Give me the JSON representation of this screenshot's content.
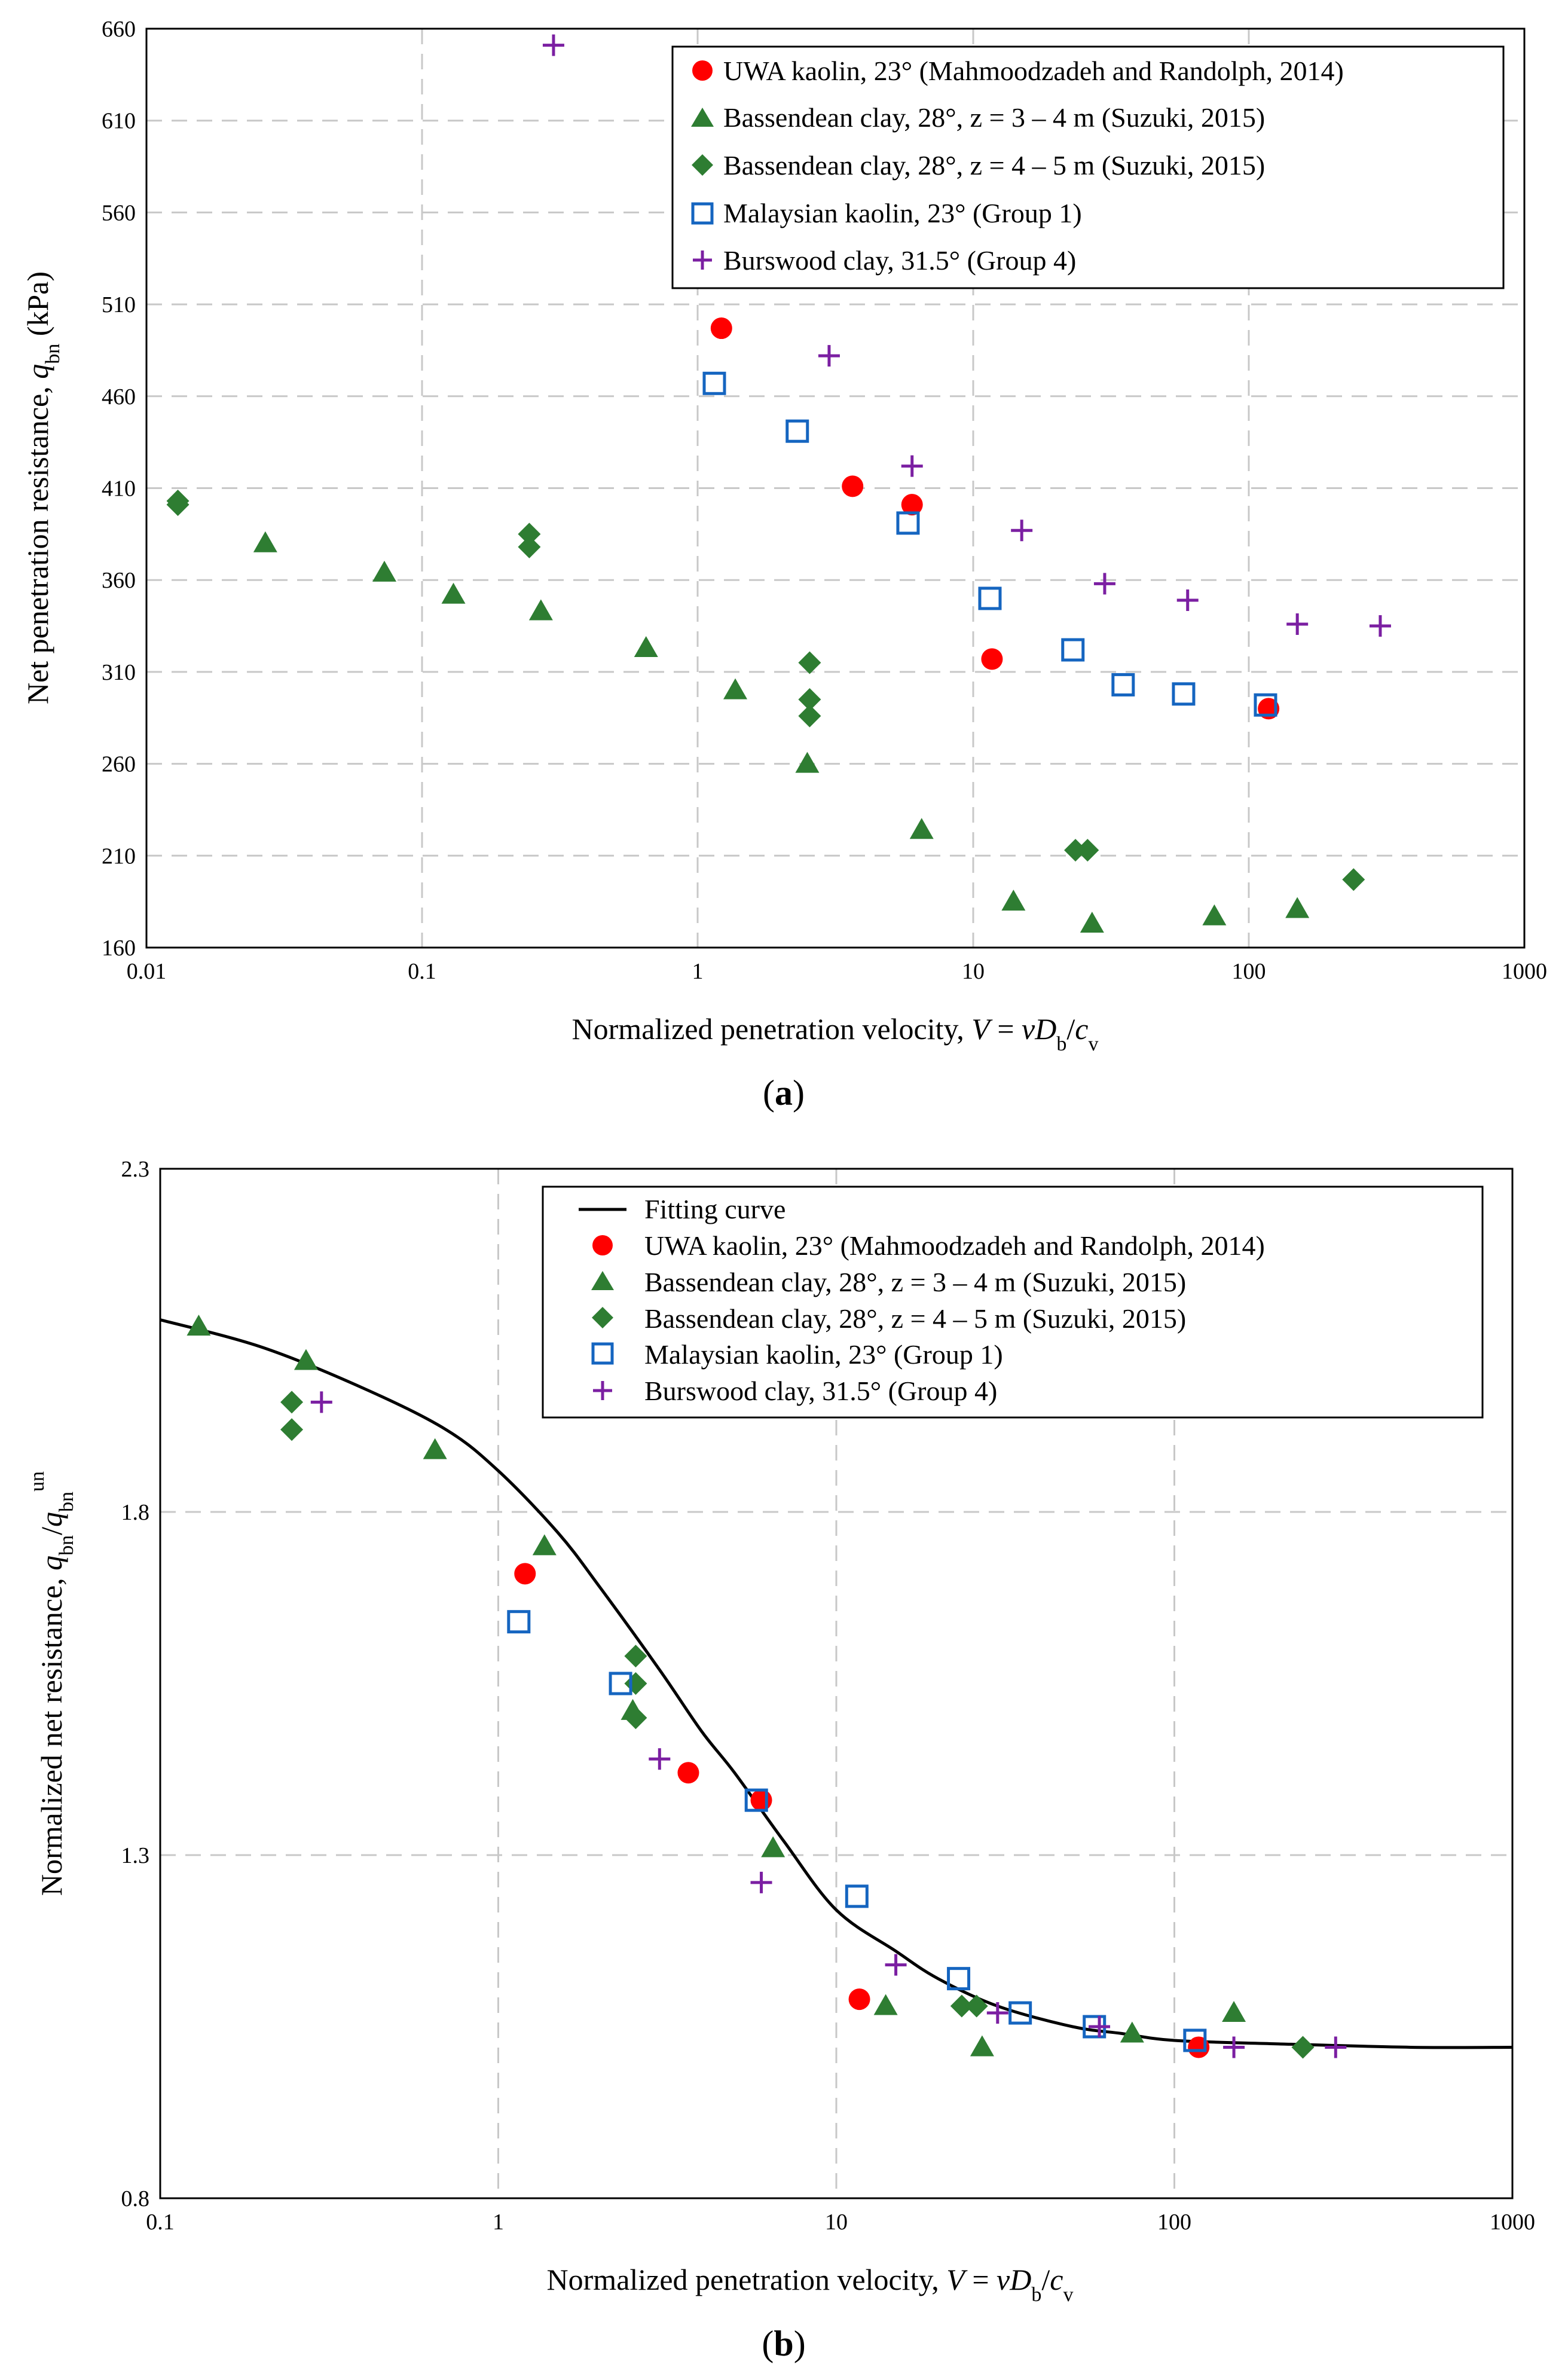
{
  "chart_data": [
    {
      "type": "scatter",
      "panel_label": "a",
      "xscale": "log",
      "xlim": [
        0.01,
        1000
      ],
      "ylim": [
        160,
        660
      ],
      "xticks": [
        0.01,
        0.1,
        1,
        10,
        100,
        1000
      ],
      "xtick_labels": [
        "0.01",
        "0.1",
        "1",
        "10",
        "100",
        "1000"
      ],
      "yticks": [
        160,
        210,
        260,
        310,
        360,
        410,
        460,
        510,
        560,
        610,
        660
      ],
      "ytick_labels": [
        "160",
        "210",
        "260",
        "310",
        "360",
        "410",
        "460",
        "510",
        "560",
        "610",
        "660"
      ],
      "xlabel": {
        "pre": "Normalized penetration velocity, ",
        "V": "V",
        "eq": " = ",
        "v": "v",
        "D": "D",
        "Dsub": "b",
        "slash": "/",
        "c": "c",
        "csub": "v"
      },
      "ylabel": {
        "pre": "Net penetration resistance, ",
        "q": "q",
        "qsub": "bn",
        "post": " (kPa)"
      },
      "grid": true,
      "legend_position": "top-right",
      "series": [
        {
          "name": "UWA kaolin, 23° (Mahmoodzadeh and Randolph, 2014)",
          "marker": "circle",
          "color": "#ff0000",
          "points": [
            [
              1.22,
              497
            ],
            [
              3.65,
              411
            ],
            [
              6.0,
              401
            ],
            [
              11.7,
              317
            ],
            [
              118,
              290
            ]
          ]
        },
        {
          "name": "Bassendean clay, 28°, z = 3 – 4 m (Suzuki, 2015)",
          "marker": "triangle",
          "color": "#2e7d32",
          "points": [
            [
              0.027,
              380
            ],
            [
              0.073,
              364
            ],
            [
              0.13,
              352
            ],
            [
              0.27,
              343
            ],
            [
              0.65,
              323
            ],
            [
              1.37,
              300
            ],
            [
              2.5,
              260
            ],
            [
              6.5,
              224
            ],
            [
              14,
              185
            ],
            [
              27,
              173
            ],
            [
              75,
              177
            ],
            [
              150,
              181
            ]
          ]
        },
        {
          "name": "Bassendean clay, 28°, z = 4 – 5 m (Suzuki, 2015)",
          "marker": "diamond",
          "color": "#2e7d32",
          "points": [
            [
              0.013,
              403
            ],
            [
              0.013,
              401
            ],
            [
              0.245,
              385
            ],
            [
              0.245,
              378
            ],
            [
              2.55,
              315
            ],
            [
              2.55,
              295
            ],
            [
              2.55,
              286
            ],
            [
              23.5,
              213
            ],
            [
              26,
              213
            ],
            [
              240,
              197
            ]
          ]
        },
        {
          "name": "Malaysian kaolin, 23° (Group 1)",
          "marker": "square-open",
          "color": "#1565c0",
          "points": [
            [
              1.15,
              467
            ],
            [
              2.3,
              441
            ],
            [
              5.8,
              391
            ],
            [
              11.5,
              350
            ],
            [
              23,
              322
            ],
            [
              35,
              303
            ],
            [
              58,
              298
            ],
            [
              115,
              292
            ]
          ]
        },
        {
          "name": "Burswood clay, 31.5° (Group 4)",
          "marker": "plus",
          "color": "#7b1fa2",
          "points": [
            [
              0.3,
              651
            ],
            [
              3.0,
              482
            ],
            [
              6.0,
              422
            ],
            [
              15,
              387
            ],
            [
              30,
              358
            ],
            [
              60,
              349
            ],
            [
              150,
              336
            ],
            [
              300,
              335
            ]
          ]
        }
      ]
    },
    {
      "type": "scatter",
      "panel_label": "b",
      "xscale": "log",
      "xlim": [
        0.1,
        1000
      ],
      "ylim": [
        0.8,
        2.3
      ],
      "xticks": [
        0.1,
        1,
        10,
        100,
        1000
      ],
      "xtick_labels": [
        "0.1",
        "1",
        "10",
        "100",
        "1000"
      ],
      "yticks": [
        0.8,
        1.3,
        1.8,
        2.3
      ],
      "ytick_labels": [
        "0.8",
        "1.3",
        "1.8",
        "2.3"
      ],
      "xlabel": {
        "pre": "Normalized penetration velocity, ",
        "V": "V",
        "eq": " = ",
        "v": "v",
        "D": "D",
        "Dsub": "b",
        "slash": "/",
        "c": "c",
        "csub": "v"
      },
      "ylabel": {
        "pre": "Normalized net resistance, ",
        "q": "q",
        "qsub": "bn",
        "slash": "/",
        "q2": "q",
        "q2sub": "bn",
        "q2sup": "un"
      },
      "grid": true,
      "legend_position": "top-right",
      "fitting_curve": {
        "name": "Fitting curve",
        "color": "#000000",
        "points": [
          [
            0.1,
            2.08
          ],
          [
            0.2,
            2.04
          ],
          [
            0.4,
            1.98
          ],
          [
            0.7,
            1.92
          ],
          [
            1.0,
            1.86
          ],
          [
            1.5,
            1.77
          ],
          [
            2.0,
            1.69
          ],
          [
            3.0,
            1.57
          ],
          [
            4.0,
            1.48
          ],
          [
            5.0,
            1.42
          ],
          [
            7.0,
            1.32
          ],
          [
            10,
            1.22
          ],
          [
            15,
            1.16
          ],
          [
            20,
            1.12
          ],
          [
            30,
            1.08
          ],
          [
            50,
            1.05
          ],
          [
            70,
            1.04
          ],
          [
            100,
            1.03
          ],
          [
            200,
            1.025
          ],
          [
            500,
            1.02
          ],
          [
            1000,
            1.02
          ]
        ]
      },
      "series": [
        {
          "name": "UWA kaolin, 23° (Mahmoodzadeh and Randolph, 2014)",
          "marker": "circle",
          "color": "#ff0000",
          "points": [
            [
              1.2,
              1.71
            ],
            [
              3.65,
              1.42
            ],
            [
              6.0,
              1.38
            ],
            [
              11.7,
              1.09
            ],
            [
              118,
              1.02
            ]
          ]
        },
        {
          "name": "Bassendean clay, 28°, z = 3 – 4 m (Suzuki, 2015)",
          "marker": "triangle",
          "color": "#2e7d32",
          "points": [
            [
              0.13,
              2.07
            ],
            [
              0.27,
              2.02
            ],
            [
              0.65,
              1.89
            ],
            [
              1.37,
              1.75
            ],
            [
              2.5,
              1.51
            ],
            [
              6.5,
              1.31
            ],
            [
              14,
              1.08
            ],
            [
              27,
              1.02
            ],
            [
              75,
              1.04
            ],
            [
              150,
              1.07
            ]
          ]
        },
        {
          "name": "Bassendean clay, 28°, z = 4 – 5 m (Suzuki, 2015)",
          "marker": "diamond",
          "color": "#2e7d32",
          "points": [
            [
              0.245,
              1.96
            ],
            [
              0.245,
              1.92
            ],
            [
              2.55,
              1.59
            ],
            [
              2.55,
              1.55
            ],
            [
              2.55,
              1.5
            ],
            [
              23.5,
              1.08
            ],
            [
              26,
              1.08
            ],
            [
              240,
              1.02
            ]
          ]
        },
        {
          "name": "Malaysian kaolin, 23° (Group 1)",
          "marker": "square-open",
          "color": "#1565c0",
          "points": [
            [
              1.15,
              1.64
            ],
            [
              2.3,
              1.55
            ],
            [
              5.8,
              1.38
            ],
            [
              11.5,
              1.24
            ],
            [
              23,
              1.12
            ],
            [
              35,
              1.07
            ],
            [
              58,
              1.05
            ],
            [
              115,
              1.03
            ]
          ]
        },
        {
          "name": "Burswood clay, 31.5° (Group 4)",
          "marker": "plus",
          "color": "#7b1fa2",
          "points": [
            [
              0.3,
              1.96
            ],
            [
              3.0,
              1.44
            ],
            [
              6.0,
              1.26
            ],
            [
              15,
              1.14
            ],
            [
              30,
              1.07
            ],
            [
              60,
              1.05
            ],
            [
              150,
              1.02
            ],
            [
              300,
              1.02
            ]
          ]
        }
      ]
    }
  ]
}
